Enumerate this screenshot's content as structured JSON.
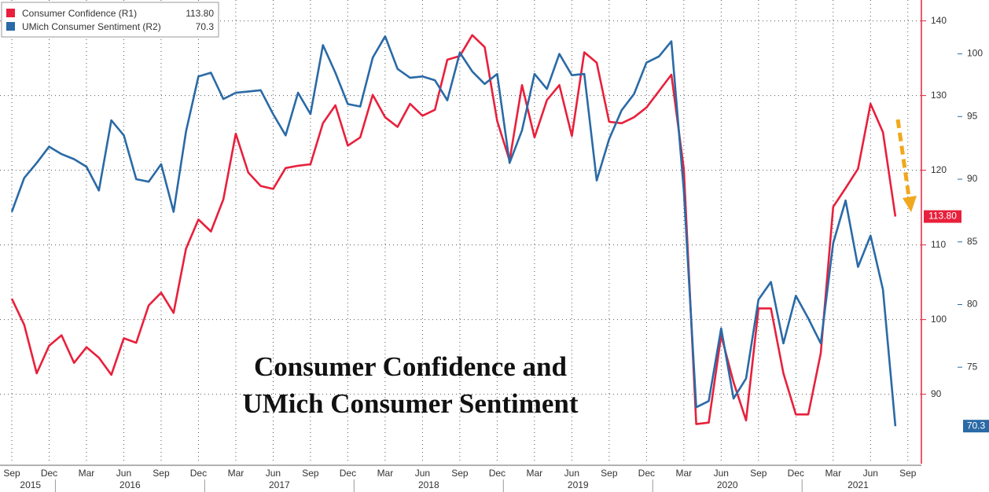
{
  "chart_data": {
    "type": "line",
    "title_lines": [
      "Consumer Confidence and",
      "UMich Consumer Sentiment"
    ],
    "categories": [
      "Sep",
      null,
      null,
      "Dec",
      null,
      null,
      "Mar",
      null,
      null,
      "Jun",
      null,
      null,
      "Sep",
      null,
      null,
      "Dec",
      null,
      null,
      "Mar",
      null,
      null,
      "Jun",
      null,
      null,
      "Sep",
      null,
      null,
      "Dec",
      null,
      null,
      "Mar",
      null,
      null,
      "Jun",
      null,
      null,
      "Sep",
      null,
      null,
      "Dec",
      null,
      null,
      "Mar",
      null,
      null,
      "Jun",
      null,
      null,
      "Sep",
      null,
      null,
      "Dec",
      null,
      null,
      "Mar",
      null,
      null,
      "Jun",
      null,
      null,
      "Sep",
      null,
      null,
      "Dec",
      null,
      null,
      "Mar",
      null,
      null,
      "Jun",
      null,
      null,
      "Sep"
    ],
    "years": [
      "2015",
      "2016",
      "2017",
      "2018",
      "2019",
      "2020",
      "2021"
    ],
    "series": [
      {
        "name": "Consumer Confidence (R1)",
        "color": "#e8203c",
        "axis": "y",
        "values": [
          102.8,
          99.3,
          92.8,
          96.5,
          97.9,
          94.2,
          96.3,
          94.9,
          92.6,
          97.5,
          96.9,
          101.9,
          103.6,
          100.9,
          109.5,
          113.4,
          111.8,
          116.1,
          124.9,
          119.7,
          117.9,
          117.5,
          120.3,
          120.6,
          120.8,
          126.3,
          128.7,
          123.3,
          124.4,
          130.1,
          127.1,
          125.8,
          128.9,
          127.3,
          128.1,
          134.8,
          135.3,
          138.1,
          136.5,
          126.6,
          121.3,
          131.4,
          124.4,
          129.4,
          131.4,
          124.6,
          135.8,
          134.4,
          126.5,
          126.3,
          127.1,
          128.4,
          130.6,
          132.8,
          120.2,
          86.0,
          86.2,
          97.9,
          91.6,
          86.5,
          101.5,
          101.5,
          92.8,
          87.3,
          87.3,
          95.5,
          115.1,
          117.6,
          120.2,
          128.9,
          125.1,
          113.8,
          null
        ],
        "value_labels": [
          null,
          null,
          null,
          null,
          null,
          null,
          null,
          null,
          null,
          null,
          null,
          null,
          null,
          null,
          null,
          null,
          null,
          null,
          null,
          null,
          null,
          null,
          null,
          null,
          null,
          null,
          null,
          null,
          null,
          null,
          null,
          null,
          null,
          null,
          null,
          null,
          null,
          null,
          null,
          null,
          null,
          null,
          null,
          null,
          null,
          null,
          null,
          null,
          null,
          null,
          null,
          null,
          null,
          null,
          null,
          null,
          null,
          null,
          null,
          null,
          null,
          null,
          null,
          null,
          null,
          null,
          null,
          null,
          null,
          null,
          null,
          "113.80",
          null
        ]
      },
      {
        "name": "UMich Consumer Sentiment (R2)",
        "color": "#2a6aa6",
        "axis": "y2",
        "values": [
          87.4,
          90.1,
          91.3,
          92.6,
          92.0,
          91.6,
          91.0,
          89.1,
          94.7,
          93.5,
          90.0,
          89.8,
          91.2,
          87.4,
          93.8,
          98.2,
          98.5,
          96.4,
          96.9,
          97.0,
          97.1,
          95.2,
          93.5,
          96.9,
          95.2,
          100.7,
          98.5,
          96.0,
          95.8,
          99.7,
          101.4,
          98.8,
          98.1,
          98.2,
          97.9,
          96.3,
          100.1,
          98.6,
          97.6,
          98.4,
          91.3,
          93.9,
          98.4,
          97.2,
          100.0,
          98.3,
          98.4,
          89.9,
          93.2,
          95.5,
          96.8,
          99.3,
          99.8,
          101.0,
          89.1,
          71.8,
          72.3,
          78.1,
          72.5,
          74.1,
          80.4,
          81.8,
          76.9,
          80.7,
          78.9,
          76.9,
          84.9,
          88.3,
          83.0,
          85.5,
          81.2,
          70.3,
          null
        ],
        "value_labels": [
          null,
          null,
          null,
          null,
          null,
          null,
          null,
          null,
          null,
          null,
          null,
          null,
          null,
          null,
          null,
          null,
          null,
          null,
          null,
          null,
          null,
          null,
          null,
          null,
          null,
          null,
          null,
          null,
          null,
          null,
          null,
          null,
          null,
          null,
          null,
          null,
          null,
          null,
          null,
          null,
          null,
          null,
          null,
          null,
          null,
          null,
          null,
          null,
          null,
          null,
          null,
          null,
          null,
          null,
          null,
          null,
          null,
          null,
          null,
          null,
          null,
          null,
          null,
          null,
          null,
          null,
          null,
          null,
          null,
          null,
          null,
          "70.3",
          null
        ]
      }
    ],
    "ylim": [
      80.7,
      142.8
    ],
    "yticks": [
      90,
      100,
      110,
      120,
      130,
      140
    ],
    "y2lim": [
      67.3,
      104.3
    ],
    "y2ticks": [
      75,
      80,
      85,
      90,
      95,
      100
    ],
    "grid": true
  }
}
